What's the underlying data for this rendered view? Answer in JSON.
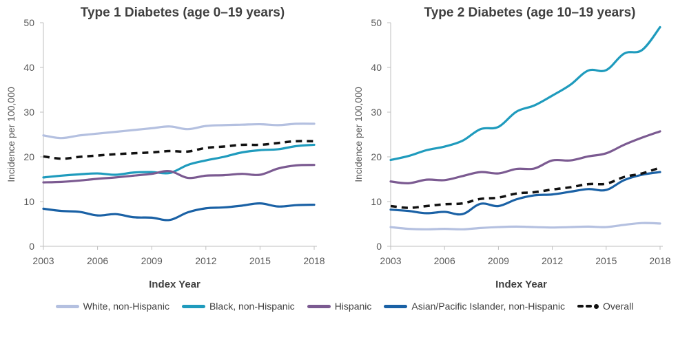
{
  "chart_data": [
    {
      "type": "line",
      "title": "Type 1 Diabetes (age 0–19 years)",
      "xlabel": "Index Year",
      "ylabel": "Incidence per 100,000",
      "ylim": [
        0,
        50
      ],
      "yticks": [
        0,
        10,
        20,
        30,
        40,
        50
      ],
      "xlim": [
        2003,
        2018
      ],
      "xticks": [
        2003,
        2006,
        2009,
        2012,
        2015,
        2018
      ],
      "x": [
        2003,
        2004,
        2005,
        2006,
        2007,
        2008,
        2009,
        2010,
        2011,
        2012,
        2013,
        2014,
        2015,
        2016,
        2017,
        2018
      ],
      "series": [
        {
          "name": "White, non-Hispanic",
          "color": "#b4c0e0",
          "values": [
            24.8,
            24.2,
            24.8,
            25.2,
            25.6,
            26.0,
            26.4,
            26.8,
            26.2,
            26.9,
            27.1,
            27.2,
            27.3,
            27.1,
            27.4,
            27.4
          ]
        },
        {
          "name": "Black, non-Hispanic",
          "color": "#1f9bbd",
          "values": [
            15.4,
            15.8,
            16.1,
            16.3,
            16.0,
            16.5,
            16.6,
            16.4,
            18.2,
            19.2,
            20.0,
            21.0,
            21.5,
            21.7,
            22.4,
            22.7
          ]
        },
        {
          "name": "Hispanic",
          "color": "#7b5a91",
          "values": [
            14.3,
            14.4,
            14.7,
            15.1,
            15.4,
            15.8,
            16.2,
            16.8,
            15.3,
            15.8,
            15.9,
            16.2,
            16.0,
            17.4,
            18.1,
            18.2
          ]
        },
        {
          "name": "Asian/Pacific Islander, non-Hispanic",
          "color": "#1a61a5",
          "values": [
            8.4,
            7.9,
            7.7,
            6.9,
            7.2,
            6.5,
            6.4,
            5.9,
            7.6,
            8.5,
            8.7,
            9.1,
            9.6,
            8.9,
            9.2,
            9.3
          ]
        },
        {
          "name": "Overall",
          "color": "#111111",
          "dashed": true,
          "values": [
            20.1,
            19.6,
            20.0,
            20.3,
            20.6,
            20.8,
            21.0,
            21.3,
            21.2,
            22.0,
            22.3,
            22.7,
            22.7,
            23.1,
            23.5,
            23.5
          ]
        }
      ]
    },
    {
      "type": "line",
      "title": "Type 2 Diabetes (age 10–19 years)",
      "xlabel": "Index Year",
      "ylabel": "Incidence per 100,000",
      "ylim": [
        0,
        50
      ],
      "yticks": [
        0,
        10,
        20,
        30,
        40,
        50
      ],
      "xlim": [
        2003,
        2018
      ],
      "xticks": [
        2003,
        2006,
        2009,
        2012,
        2015,
        2018
      ],
      "x": [
        2003,
        2004,
        2005,
        2006,
        2007,
        2008,
        2009,
        2010,
        2011,
        2012,
        2013,
        2014,
        2015,
        2016,
        2017,
        2018
      ],
      "series": [
        {
          "name": "White, non-Hispanic",
          "color": "#b4c0e0",
          "values": [
            4.3,
            3.9,
            3.8,
            3.9,
            3.8,
            4.1,
            4.3,
            4.4,
            4.3,
            4.2,
            4.3,
            4.4,
            4.3,
            4.8,
            5.2,
            5.1
          ]
        },
        {
          "name": "Black, non-Hispanic",
          "color": "#1f9bbd",
          "values": [
            19.3,
            20.2,
            21.5,
            22.3,
            23.6,
            26.2,
            26.7,
            30.1,
            31.5,
            33.7,
            36.1,
            39.3,
            39.4,
            43.1,
            43.9,
            49.0
          ]
        },
        {
          "name": "Hispanic",
          "color": "#7b5a91",
          "values": [
            14.5,
            14.1,
            14.9,
            14.8,
            15.7,
            16.6,
            16.3,
            17.3,
            17.4,
            19.2,
            19.2,
            20.1,
            20.8,
            22.7,
            24.3,
            25.7
          ]
        },
        {
          "name": "Asian/Pacific Islander, non-Hispanic",
          "color": "#1a61a5",
          "values": [
            8.2,
            7.9,
            7.4,
            7.7,
            7.2,
            9.5,
            9.0,
            10.5,
            11.4,
            11.6,
            12.2,
            12.8,
            12.6,
            14.8,
            16.0,
            16.6
          ]
        },
        {
          "name": "Overall",
          "color": "#111111",
          "dashed": true,
          "values": [
            9.0,
            8.6,
            9.0,
            9.4,
            9.6,
            10.6,
            10.9,
            11.8,
            12.1,
            12.7,
            13.2,
            13.9,
            14.0,
            15.5,
            16.3,
            17.6
          ]
        }
      ]
    }
  ],
  "legend": {
    "items": [
      {
        "label": "White, non-Hispanic",
        "color": "#b4c0e0"
      },
      {
        "label": "Black, non-Hispanic",
        "color": "#1f9bbd"
      },
      {
        "label": "Hispanic",
        "color": "#7b5a91"
      },
      {
        "label": "Asian/Pacific Islander, non-Hispanic",
        "color": "#1a61a5"
      },
      {
        "label": "Overall",
        "color": "#111111"
      }
    ]
  }
}
